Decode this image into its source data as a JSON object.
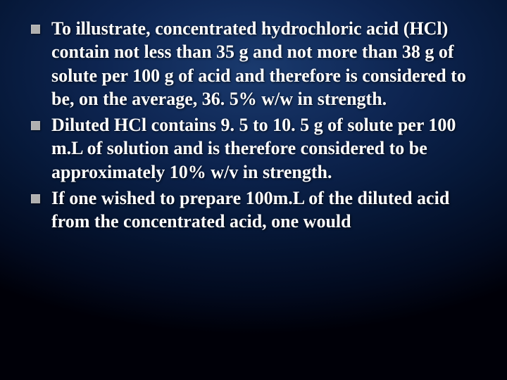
{
  "slide": {
    "background_gradient": [
      "#1a3a6e",
      "#0d2450",
      "#061838",
      "#020a1e",
      "#000008"
    ],
    "text_color": "#ffffff",
    "bullet_marker_color": "#b0b0b0",
    "font_family": "Times New Roman",
    "font_size_pt": 26,
    "font_weight": "bold",
    "bullets": [
      {
        "text": "To illustrate, concentrated hydrochloric acid (HCl) contain not less than 35 g and not more than 38 g of solute per 100 g of acid and therefore is considered to be, on the average, 36. 5% w/w in strength."
      },
      {
        "text": "Diluted HCl contains 9. 5 to 10. 5 g of solute per 100 m.L of solution and is therefore considered to be approximately 10% w/v in strength."
      },
      {
        "text": "If one wished to prepare 100m.L of the diluted acid from the concentrated acid, one would"
      }
    ]
  }
}
